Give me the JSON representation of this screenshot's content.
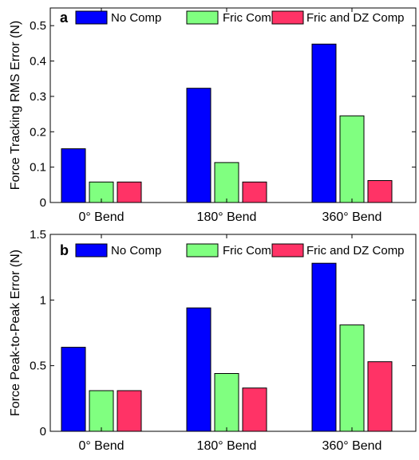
{
  "chart_data": [
    {
      "type": "bar",
      "panel_label": "a",
      "title": "",
      "xlabel": "",
      "ylabel": "Force Tracking RMS Error (N)",
      "categories": [
        "0° Bend",
        "180° Bend",
        "360° Bend"
      ],
      "ylim": [
        0,
        0.55
      ],
      "yticks": [
        0,
        0.1,
        0.2,
        0.3,
        0.4,
        0.5
      ],
      "ytick_labels": [
        "0",
        "0.1",
        "0.2",
        "0.3",
        "0.4",
        "0.5"
      ],
      "legend_position": "top",
      "grid": false,
      "series": [
        {
          "name": "No Comp",
          "color": "#0000ff",
          "values": [
            0.152,
            0.323,
            0.448
          ]
        },
        {
          "name": "Fric Comp",
          "color": "#80ff80",
          "values": [
            0.058,
            0.113,
            0.245
          ]
        },
        {
          "name": "Fric and DZ Comp",
          "color": "#ff3366",
          "values": [
            0.058,
            0.058,
            0.062
          ]
        }
      ]
    },
    {
      "type": "bar",
      "panel_label": "b",
      "title": "",
      "xlabel": "",
      "ylabel": "Force  Peak-to-Peak Error (N)",
      "categories": [
        "0° Bend",
        "180° Bend",
        "360° Bend"
      ],
      "ylim": [
        0,
        1.5
      ],
      "yticks": [
        0,
        0.5,
        1,
        1.5
      ],
      "ytick_labels": [
        "0",
        "0.5",
        "1",
        "1.5"
      ],
      "legend_position": "top",
      "grid": false,
      "series": [
        {
          "name": "No Comp",
          "color": "#0000ff",
          "values": [
            0.64,
            0.94,
            1.28
          ]
        },
        {
          "name": "Fric Comp",
          "color": "#80ff80",
          "values": [
            0.31,
            0.44,
            0.81
          ]
        },
        {
          "name": "Fric and DZ Comp",
          "color": "#ff3366",
          "values": [
            0.31,
            0.33,
            0.53
          ]
        }
      ]
    }
  ]
}
